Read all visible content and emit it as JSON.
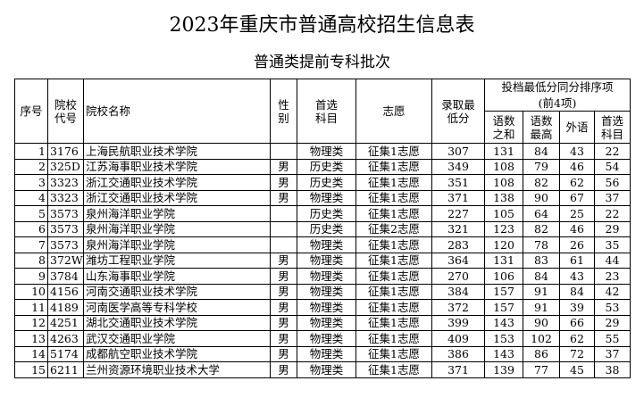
{
  "header": {
    "title": "2023年重庆市普通高校招生信息表",
    "subtitle": "普通类提前专科批次"
  },
  "table": {
    "columns": [
      "序号",
      "院校代号",
      "院校名称",
      "性别",
      "首选科目",
      "志愿",
      "录取最低分"
    ],
    "group": "投档最低分同分排序项",
    "group_note": "(前4项)",
    "sub_columns": [
      "语数之和",
      "语数最高",
      "外语",
      "首选科目"
    ],
    "rows": [
      [
        1,
        "3176",
        "上海民航职业技术学院",
        null,
        "物理类",
        "征集1志愿",
        307,
        131,
        84,
        43,
        22
      ],
      [
        2,
        "325D",
        "江苏海事职业技术学院",
        "男",
        "历史类",
        "征集1志愿",
        349,
        108,
        79,
        46,
        54
      ],
      [
        3,
        "3323",
        "浙江交通职业技术学院",
        "男",
        "历史类",
        "征集1志愿",
        351,
        108,
        82,
        62,
        56
      ],
      [
        4,
        "3323",
        "浙江交通职业技术学院",
        "男",
        "物理类",
        "征集1志愿",
        371,
        138,
        90,
        67,
        37
      ],
      [
        5,
        "3573",
        "泉州海洋职业学院",
        null,
        "历史类",
        "征集1志愿",
        227,
        105,
        64,
        25,
        22
      ],
      [
        6,
        "3573",
        "泉州海洋职业学院",
        null,
        "历史类",
        "征集2志愿",
        321,
        123,
        82,
        46,
        29
      ],
      [
        7,
        "3573",
        "泉州海洋职业学院",
        null,
        "物理类",
        "征集1志愿",
        283,
        120,
        78,
        26,
        35
      ],
      [
        8,
        "372W",
        "潍坊工程职业学院",
        "男",
        "物理类",
        "征集1志愿",
        364,
        131,
        83,
        61,
        44
      ],
      [
        9,
        "3784",
        "山东海事职业学院",
        "男",
        "物理类",
        "征集1志愿",
        270,
        106,
        84,
        43,
        23
      ],
      [
        10,
        "4156",
        "河南交通职业技术学院",
        "男",
        "物理类",
        "征集1志愿",
        384,
        157,
        91,
        84,
        42
      ],
      [
        11,
        "4189",
        "河南医学高等专科学校",
        "男",
        "物理类",
        "征集1志愿",
        372,
        157,
        91,
        39,
        53
      ],
      [
        12,
        "4251",
        "湖北交通职业技术学院",
        "男",
        "物理类",
        "征集1志愿",
        399,
        143,
        90,
        66,
        29
      ],
      [
        13,
        "4263",
        "武汉交通职业学院",
        "男",
        "物理类",
        "征集1志愿",
        409,
        153,
        102,
        62,
        55
      ],
      [
        14,
        "5174",
        "成都航空职业技术学院",
        "男",
        "物理类",
        "征集1志愿",
        386,
        143,
        86,
        72,
        37
      ],
      [
        15,
        "6211",
        "兰州资源环境职业技术大学",
        "男",
        "物理类",
        "征集1志愿",
        371,
        139,
        77,
        45,
        38
      ]
    ]
  }
}
